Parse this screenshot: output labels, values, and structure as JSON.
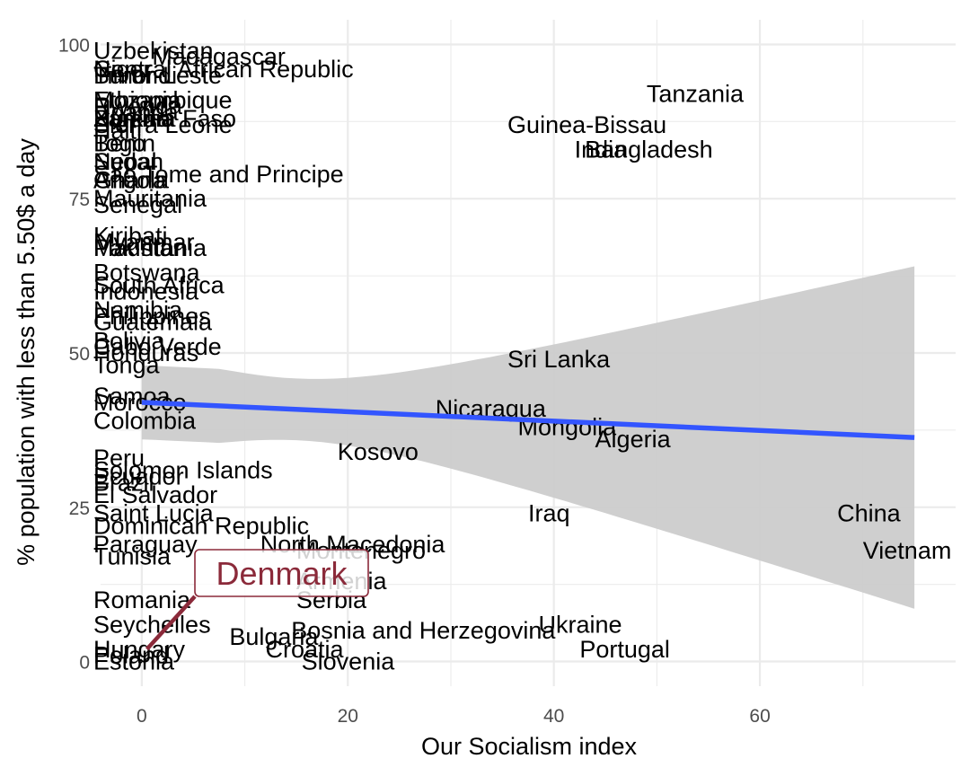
{
  "chart_data": {
    "type": "scatter",
    "xlabel": "Our Socialism index",
    "ylabel": "% population with less than 5.50$ a day",
    "xlim": [
      -4,
      79
    ],
    "ylim": [
      -4,
      104
    ],
    "x_ticks": [
      0,
      20,
      40,
      60
    ],
    "y_ticks": [
      0,
      25,
      50,
      75,
      100
    ],
    "grid": true,
    "colors": {
      "trend_line": "#3355ff",
      "confidence_band": "#cccccc",
      "gridline": "#ebebeb",
      "highlight": "#8b2a3a"
    },
    "trend": {
      "x": [
        0,
        75
      ],
      "y": [
        42.0,
        36.3
      ],
      "band_lower": [
        36.0,
        8.5
      ],
      "band_upper": [
        48.0,
        64.0
      ]
    },
    "highlight": {
      "label": "Denmark",
      "x": 0.5,
      "y": 2.0
    },
    "points": [
      {
        "label": "Uzbekistan",
        "x": 0,
        "y": 99
      },
      {
        "label": "Madagascar",
        "x": 1,
        "y": 98
      },
      {
        "label": "Central African Republic",
        "x": 0,
        "y": 96
      },
      {
        "label": "Niger",
        "x": 0,
        "y": 96
      },
      {
        "label": "Timor-Leste",
        "x": 0,
        "y": 95
      },
      {
        "label": "Burundi",
        "x": 0,
        "y": 95
      },
      {
        "label": "Tanzania",
        "x": 49,
        "y": 92
      },
      {
        "label": "Mozambique",
        "x": 0,
        "y": 91
      },
      {
        "label": "Ethiopia",
        "x": 0,
        "y": 91
      },
      {
        "label": "Rwanda",
        "x": 0,
        "y": 90
      },
      {
        "label": "Uganda",
        "x": 0,
        "y": 89
      },
      {
        "label": "Zambia",
        "x": 0,
        "y": 88
      },
      {
        "label": "Nigeria",
        "x": 0,
        "y": 88
      },
      {
        "label": "Burkina Faso",
        "x": 0,
        "y": 88
      },
      {
        "label": "Guinea-Bissau",
        "x": 35.5,
        "y": 87
      },
      {
        "label": "Sierra Leone",
        "x": 0,
        "y": 87
      },
      {
        "label": "Haiti",
        "x": 0,
        "y": 86
      },
      {
        "label": "Benin",
        "x": 0,
        "y": 84
      },
      {
        "label": "Togo",
        "x": 0,
        "y": 84
      },
      {
        "label": "India",
        "x": 42,
        "y": 83
      },
      {
        "label": "Bangladesh",
        "x": 43,
        "y": 83
      },
      {
        "label": "Nepal",
        "x": 0,
        "y": 81
      },
      {
        "label": "Sudan",
        "x": 0,
        "y": 81
      },
      {
        "label": "Sao Tome and Principe",
        "x": 0,
        "y": 79
      },
      {
        "label": "Angola",
        "x": 0,
        "y": 78
      },
      {
        "label": "Ghana",
        "x": 0,
        "y": 78
      },
      {
        "label": "Mauritania",
        "x": 0,
        "y": 75
      },
      {
        "label": "Senegal",
        "x": 0,
        "y": 74
      },
      {
        "label": "Kiribati",
        "x": 0,
        "y": 69
      },
      {
        "label": "Myanmar",
        "x": 0,
        "y": 68
      },
      {
        "label": "Mauritania",
        "x": 0,
        "y": 67
      },
      {
        "label": "Pakistan",
        "x": 0,
        "y": 67
      },
      {
        "label": "Botswana",
        "x": 0,
        "y": 63
      },
      {
        "label": "South Africa",
        "x": 0,
        "y": 61
      },
      {
        "label": "Indonesia",
        "x": 0,
        "y": 60
      },
      {
        "label": "Namibia",
        "x": 0,
        "y": 57
      },
      {
        "label": "Philippines",
        "x": 0,
        "y": 56
      },
      {
        "label": "Guatemala",
        "x": 0,
        "y": 55
      },
      {
        "label": "Bolivia",
        "x": 0,
        "y": 52
      },
      {
        "label": "Cabo Verde",
        "x": 0,
        "y": 51
      },
      {
        "label": "Honduras",
        "x": 0,
        "y": 50
      },
      {
        "label": "Tonga",
        "x": 0,
        "y": 48
      },
      {
        "label": "Sri Lanka",
        "x": 35.5,
        "y": 49
      },
      {
        "label": "Samoa",
        "x": 0,
        "y": 43
      },
      {
        "label": "Morocco",
        "x": 0,
        "y": 42
      },
      {
        "label": "Nicaragua",
        "x": 28.5,
        "y": 41
      },
      {
        "label": "Colombia",
        "x": 0,
        "y": 39
      },
      {
        "label": "Mongolia",
        "x": 36.5,
        "y": 38
      },
      {
        "label": "Algeria",
        "x": 44,
        "y": 36
      },
      {
        "label": "Kosovo",
        "x": 19,
        "y": 34
      },
      {
        "label": "Peru",
        "x": 0,
        "y": 33
      },
      {
        "label": "Solomon Islands",
        "x": 0,
        "y": 31
      },
      {
        "label": "Ecuador",
        "x": 0,
        "y": 30
      },
      {
        "label": "Brazil",
        "x": 0,
        "y": 29
      },
      {
        "label": "El Salvador",
        "x": 0,
        "y": 27
      },
      {
        "label": "Iraq",
        "x": 37.5,
        "y": 24
      },
      {
        "label": "China",
        "x": 67.5,
        "y": 24
      },
      {
        "label": "Saint Lucia",
        "x": 0,
        "y": 24
      },
      {
        "label": "Dominican Republic",
        "x": 0,
        "y": 22
      },
      {
        "label": "Paraguay",
        "x": 0,
        "y": 19
      },
      {
        "label": "North Macedonia",
        "x": 11.5,
        "y": 19
      },
      {
        "label": "Montenegro",
        "x": 15,
        "y": 18
      },
      {
        "label": "Vietnam",
        "x": 70,
        "y": 18
      },
      {
        "label": "Tunisia",
        "x": 0,
        "y": 17
      },
      {
        "label": "Armenia",
        "x": 15,
        "y": 13
      },
      {
        "label": "Romania",
        "x": 0,
        "y": 10
      },
      {
        "label": "Serbia",
        "x": 15,
        "y": 10
      },
      {
        "label": "Seychelles",
        "x": 0,
        "y": 6
      },
      {
        "label": "Ukraine",
        "x": 38.5,
        "y": 6
      },
      {
        "label": "Bosnia and Herzegovina",
        "x": 14.5,
        "y": 5
      },
      {
        "label": "Bulgaria",
        "x": 8.5,
        "y": 4
      },
      {
        "label": "Portugal",
        "x": 42.5,
        "y": 2
      },
      {
        "label": "Croatia",
        "x": 12,
        "y": 2
      },
      {
        "label": "Hungary",
        "x": 0,
        "y": 2
      },
      {
        "label": "Poland",
        "x": 0,
        "y": 1
      },
      {
        "label": "Slovenia",
        "x": 15.5,
        "y": 0
      },
      {
        "label": "Estonia",
        "x": 0,
        "y": 0
      }
    ]
  }
}
